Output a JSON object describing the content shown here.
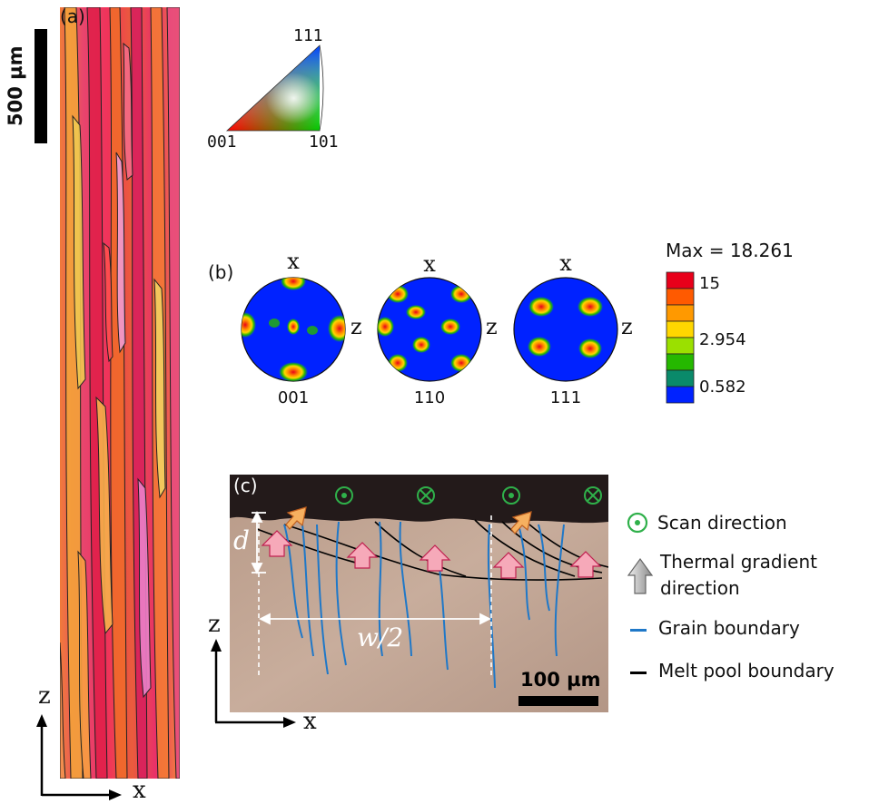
{
  "panel_a": {
    "label": "(a)",
    "scale_bar_label": "500 µm",
    "axis_z": "z",
    "axis_x": "x"
  },
  "ipf_key": {
    "top": "111",
    "left": "001",
    "right": "101"
  },
  "panel_b": {
    "label": "(b)",
    "pole_figures": [
      {
        "caption": "001",
        "x_label": "x",
        "z_label": "z"
      },
      {
        "caption": "110",
        "x_label": "x",
        "z_label": "z"
      },
      {
        "caption": "111",
        "x_label": "x",
        "z_label": "z"
      }
    ],
    "colorbar": {
      "title": "Max = 18.261",
      "ticks": [
        "15",
        "2.954",
        "0.582"
      ],
      "colors": [
        "#e8001a",
        "#ff5a00",
        "#ff9900",
        "#ffd700",
        "#9be000",
        "#25b800",
        "#0a8a6a",
        "#0022ff"
      ]
    }
  },
  "panel_c": {
    "label": "(c)",
    "depth_label": "d",
    "width_label": "w/2",
    "scale_bar_label": "100 µm",
    "axis_z": "z",
    "axis_x": "x",
    "legend": {
      "scan": "Scan direction",
      "thermal_line1": "Thermal gradient",
      "thermal_line2": "direction",
      "grain": "Grain boundary",
      "melt": "Melt pool boundary"
    },
    "colors": {
      "grain_boundary": "#1f78c8",
      "melt_pool_boundary": "#000000",
      "scan_symbol": "#2fb04a"
    }
  }
}
